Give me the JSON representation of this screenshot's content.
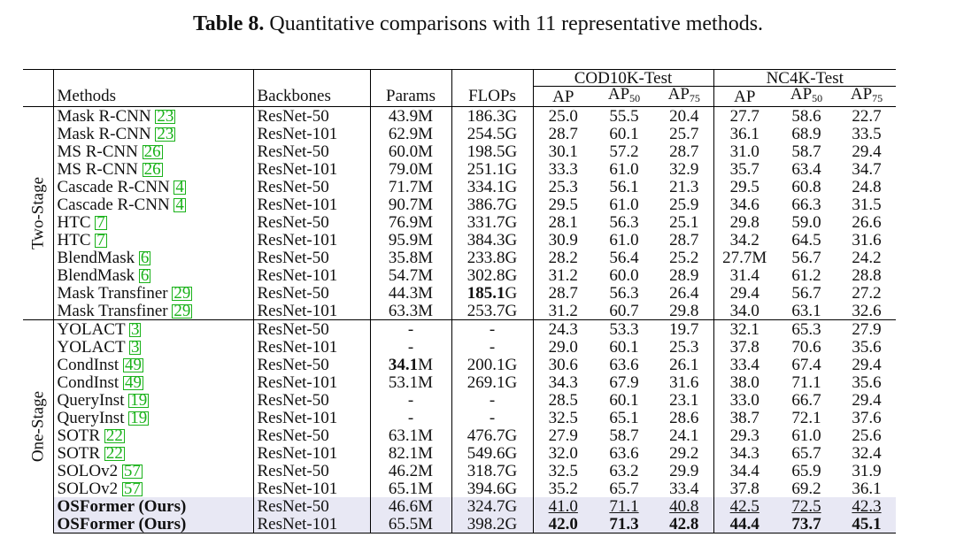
{
  "caption": {
    "label": "Table 8.",
    "text": "Quantitative comparisons with 11 representative methods."
  },
  "headers": {
    "methods": "Methods",
    "backbones": "Backbones",
    "params": "Params",
    "flops": "FLOPs",
    "cod": "COD10K-Test",
    "nc4k": "NC4K-Test",
    "ap": "AP",
    "ap50": "50",
    "ap75": "75"
  },
  "groups": {
    "two_stage": "Two-Stage",
    "one_stage": "One-Stage"
  },
  "rows": [
    {
      "m": "Mask R-CNN",
      "c": "23",
      "b": "ResNet-50",
      "p": "43.9M",
      "f": "186.3G",
      "v": [
        "25.0",
        "55.5",
        "20.4",
        "27.7",
        "58.6",
        "22.7"
      ]
    },
    {
      "m": "Mask R-CNN",
      "c": "23",
      "b": "ResNet-101",
      "p": "62.9M",
      "f": "254.5G",
      "v": [
        "28.7",
        "60.1",
        "25.7",
        "36.1",
        "68.9",
        "33.5"
      ]
    },
    {
      "m": "MS R-CNN",
      "c": "26",
      "b": "ResNet-50",
      "p": "60.0M",
      "f": "198.5G",
      "v": [
        "30.1",
        "57.2",
        "28.7",
        "31.0",
        "58.7",
        "29.4"
      ]
    },
    {
      "m": "MS R-CNN",
      "c": "26",
      "b": "ResNet-101",
      "p": "79.0M",
      "f": "251.1G",
      "v": [
        "33.3",
        "61.0",
        "32.9",
        "35.7",
        "63.4",
        "34.7"
      ]
    },
    {
      "m": "Cascade R-CNN",
      "c": "4",
      "b": "ResNet-50",
      "p": "71.7M",
      "f": "334.1G",
      "v": [
        "25.3",
        "56.1",
        "21.3",
        "29.5",
        "60.8",
        "24.8"
      ]
    },
    {
      "m": "Cascade R-CNN",
      "c": "4",
      "b": "ResNet-101",
      "p": "90.7M",
      "f": "386.7G",
      "v": [
        "29.5",
        "61.0",
        "25.9",
        "34.6",
        "66.3",
        "31.5"
      ]
    },
    {
      "m": "HTC",
      "c": "7",
      "b": "ResNet-50",
      "p": "76.9M",
      "f": "331.7G",
      "v": [
        "28.1",
        "56.3",
        "25.1",
        "29.8",
        "59.0",
        "26.6"
      ]
    },
    {
      "m": "HTC",
      "c": "7",
      "b": "ResNet-101",
      "p": "95.9M",
      "f": "384.3G",
      "v": [
        "30.9",
        "61.0",
        "28.7",
        "34.2",
        "64.5",
        "31.6"
      ]
    },
    {
      "m": "BlendMask",
      "c": "6",
      "b": "ResNet-50",
      "p": "35.8M",
      "f": "233.8G",
      "v": [
        "28.2",
        "56.4",
        "25.2",
        "27.7M",
        "56.7",
        "24.2"
      ]
    },
    {
      "m": "BlendMask",
      "c": "6",
      "b": "ResNet-101",
      "p": "54.7M",
      "f": "302.8G",
      "v": [
        "31.2",
        "60.0",
        "28.9",
        "31.4",
        "61.2",
        "28.8"
      ]
    },
    {
      "m": "Mask Transfiner",
      "c": "29",
      "b": "ResNet-50",
      "p": "44.3M",
      "f": "185.1G",
      "v": [
        "28.7",
        "56.3",
        "26.4",
        "29.4",
        "56.7",
        "27.2"
      ]
    },
    {
      "m": "Mask Transfiner",
      "c": "29",
      "b": "ResNet-101",
      "p": "63.3M",
      "f": "253.7G",
      "v": [
        "31.2",
        "60.7",
        "29.8",
        "34.0",
        "63.1",
        "32.6"
      ]
    },
    {
      "m": "YOLACT",
      "c": "3",
      "b": "ResNet-50",
      "p": "-",
      "f": "-",
      "v": [
        "24.3",
        "53.3",
        "19.7",
        "32.1",
        "65.3",
        "27.9"
      ]
    },
    {
      "m": "YOLACT",
      "c": "3",
      "b": "ResNet-101",
      "p": "-",
      "f": "-",
      "v": [
        "29.0",
        "60.1",
        "25.3",
        "37.8",
        "70.6",
        "35.6"
      ]
    },
    {
      "m": "CondInst",
      "c": "49",
      "b": "ResNet-50",
      "p": "34.1M",
      "f": "200.1G",
      "v": [
        "30.6",
        "63.6",
        "26.1",
        "33.4",
        "67.4",
        "29.4"
      ]
    },
    {
      "m": "CondInst",
      "c": "49",
      "b": "ResNet-101",
      "p": "53.1M",
      "f": "269.1G",
      "v": [
        "34.3",
        "67.9",
        "31.6",
        "38.0",
        "71.1",
        "35.6"
      ]
    },
    {
      "m": "QueryInst",
      "c": "19",
      "b": "ResNet-50",
      "p": "-",
      "f": "-",
      "v": [
        "28.5",
        "60.1",
        "23.1",
        "33.0",
        "66.7",
        "29.4"
      ]
    },
    {
      "m": "QueryInst",
      "c": "19",
      "b": "ResNet-101",
      "p": "-",
      "f": "-",
      "v": [
        "32.5",
        "65.1",
        "28.6",
        "38.7",
        "72.1",
        "37.6"
      ]
    },
    {
      "m": "SOTR",
      "c": "22",
      "b": "ResNet-50",
      "p": "63.1M",
      "f": "476.7G",
      "v": [
        "27.9",
        "58.7",
        "24.1",
        "29.3",
        "61.0",
        "25.6"
      ]
    },
    {
      "m": "SOTR",
      "c": "22",
      "b": "ResNet-101",
      "p": "82.1M",
      "f": "549.6G",
      "v": [
        "32.0",
        "63.6",
        "29.2",
        "34.3",
        "65.7",
        "32.4"
      ]
    },
    {
      "m": "SOLOv2",
      "c": "57",
      "b": "ResNet-50",
      "p": "46.2M",
      "f": "318.7G",
      "v": [
        "32.5",
        "63.2",
        "29.9",
        "34.4",
        "65.9",
        "31.9"
      ]
    },
    {
      "m": "SOLOv2",
      "c": "57",
      "b": "ResNet-101",
      "p": "65.1M",
      "f": "394.6G",
      "v": [
        "35.2",
        "65.7",
        "33.4",
        "37.8",
        "69.2",
        "36.1"
      ]
    },
    {
      "m": "OSFormer (Ours)",
      "c": "",
      "b": "ResNet-50",
      "p": "46.6M",
      "f": "324.7G",
      "v": [
        "41.0",
        "71.1",
        "40.8",
        "42.5",
        "72.5",
        "42.3"
      ]
    },
    {
      "m": "OSFormer (Ours)",
      "c": "",
      "b": "ResNet-101",
      "p": "65.5M",
      "f": "398.2G",
      "v": [
        "42.0",
        "71.3",
        "42.8",
        "44.4",
        "73.7",
        "45.1"
      ]
    }
  ]
}
